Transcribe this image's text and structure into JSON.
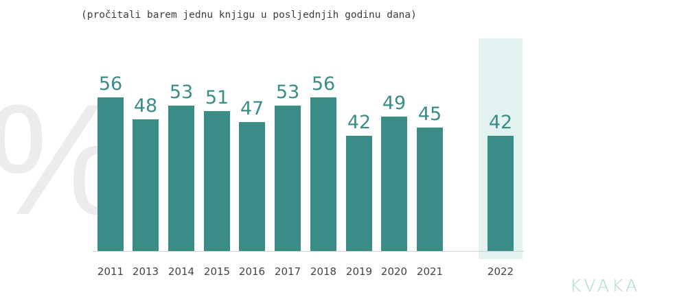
{
  "chart_data": {
    "type": "bar",
    "subtitle": "(pročitali barem jednu knjigu u posljednjih godinu dana)",
    "categories": [
      "2011",
      "2013",
      "2014",
      "2015",
      "2016",
      "2017",
      "2018",
      "2019",
      "2020",
      "2021",
      "2022"
    ],
    "values": [
      56,
      48,
      53,
      51,
      47,
      53,
      56,
      42,
      49,
      45,
      42
    ],
    "highlighted_category": "2022",
    "ylim": [
      0,
      60
    ],
    "grid": false,
    "legend": "none",
    "bar_color": "#3a8d86",
    "highlight_band_color": "#e2f2f0",
    "label_color": "#3a8d86",
    "tick_label_color": "#444444"
  },
  "watermark": "%",
  "logo_text": "KVAKA"
}
